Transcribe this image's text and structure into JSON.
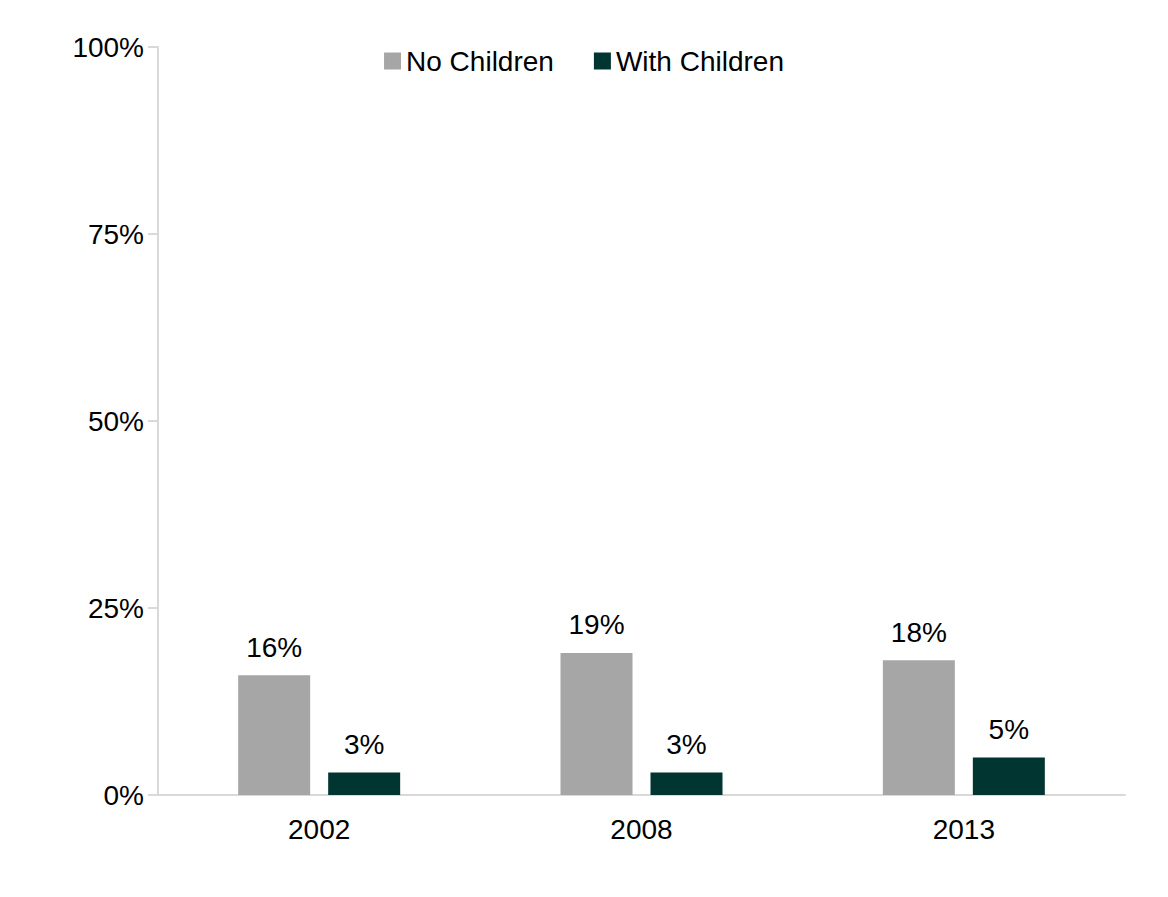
{
  "chart_data": {
    "type": "bar",
    "categories": [
      "2002",
      "2008",
      "2013"
    ],
    "series": [
      {
        "name": "No Children",
        "color": "#a6a6a6",
        "values": [
          16,
          19,
          18
        ],
        "value_labels": [
          "16%",
          "19%",
          "18%"
        ]
      },
      {
        "name": "With Children",
        "color": "#003532",
        "values": [
          3,
          3,
          5
        ],
        "value_labels": [
          "3%",
          "3%",
          "5%"
        ]
      }
    ],
    "ylim": [
      0,
      100
    ],
    "yticks": [
      {
        "value": 0,
        "label": "0%"
      },
      {
        "value": 25,
        "label": "25%"
      },
      {
        "value": 50,
        "label": "50%"
      },
      {
        "value": 75,
        "label": "75%"
      },
      {
        "value": 100,
        "label": "100%"
      }
    ],
    "grid": false,
    "legend": "top",
    "data_labels": true
  }
}
